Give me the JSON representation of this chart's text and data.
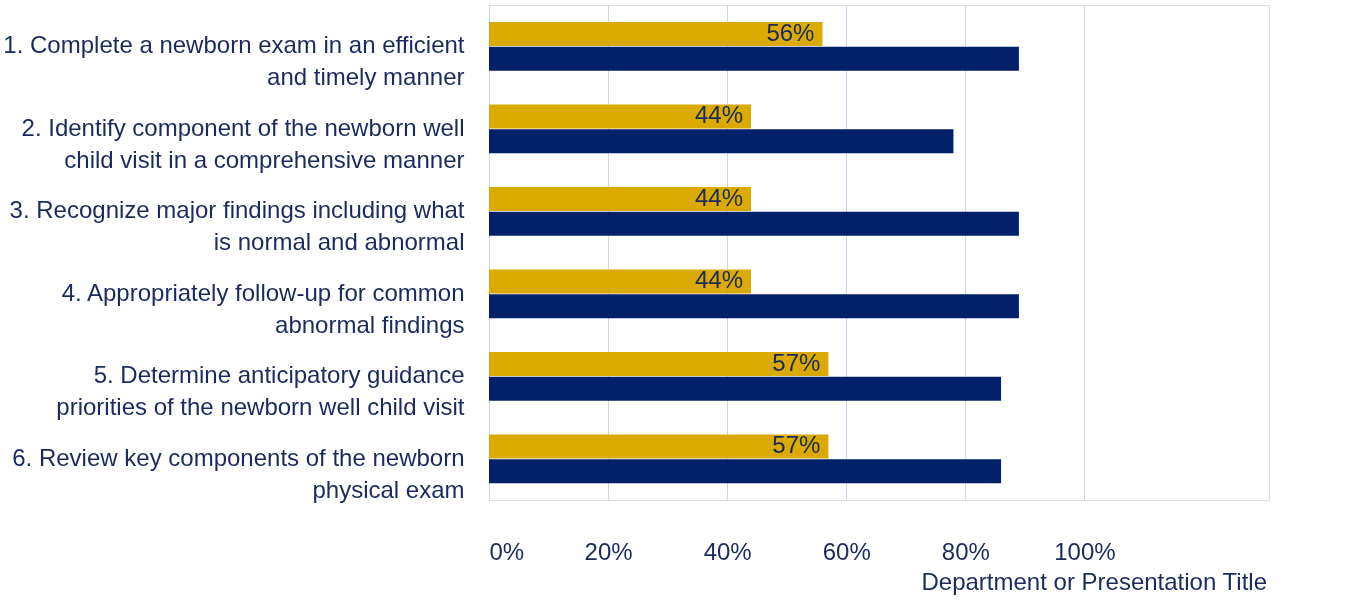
{
  "chart_data": {
    "type": "bar",
    "orientation": "horizontal",
    "categories": [
      "1. Complete a newborn exam in an efficient and timely manner",
      "2. Identify component of the newborn well child visit in a comprehensive manner",
      "3. Recognize major findings including what is normal and abnormal",
      "4. Appropriately follow-up for common abnormal findings",
      "5. Determine anticipatory guidance priorities of the newborn well child visit",
      "6. Review key components of the newborn physical exam"
    ],
    "series": [
      {
        "color": "#daaa00",
        "values": [
          56,
          44,
          44,
          44,
          57,
          57
        ],
        "value_labels": [
          "56%",
          "44%",
          "44%",
          "44%",
          "57%",
          "57%"
        ]
      },
      {
        "color": "#022169",
        "values": [
          89,
          78,
          89,
          89,
          86,
          86
        ]
      }
    ],
    "xlim": [
      0,
      131
    ],
    "xticks": [
      {
        "value": 0,
        "label": "0%"
      },
      {
        "value": 20,
        "label": "20%"
      },
      {
        "value": 40,
        "label": "40%"
      },
      {
        "value": 60,
        "label": "60%"
      },
      {
        "value": 80,
        "label": "80%"
      },
      {
        "value": 100,
        "label": "100%"
      }
    ],
    "grid": "x",
    "legend": false,
    "annotations": [
      "Department or Presentation Title"
    ]
  }
}
